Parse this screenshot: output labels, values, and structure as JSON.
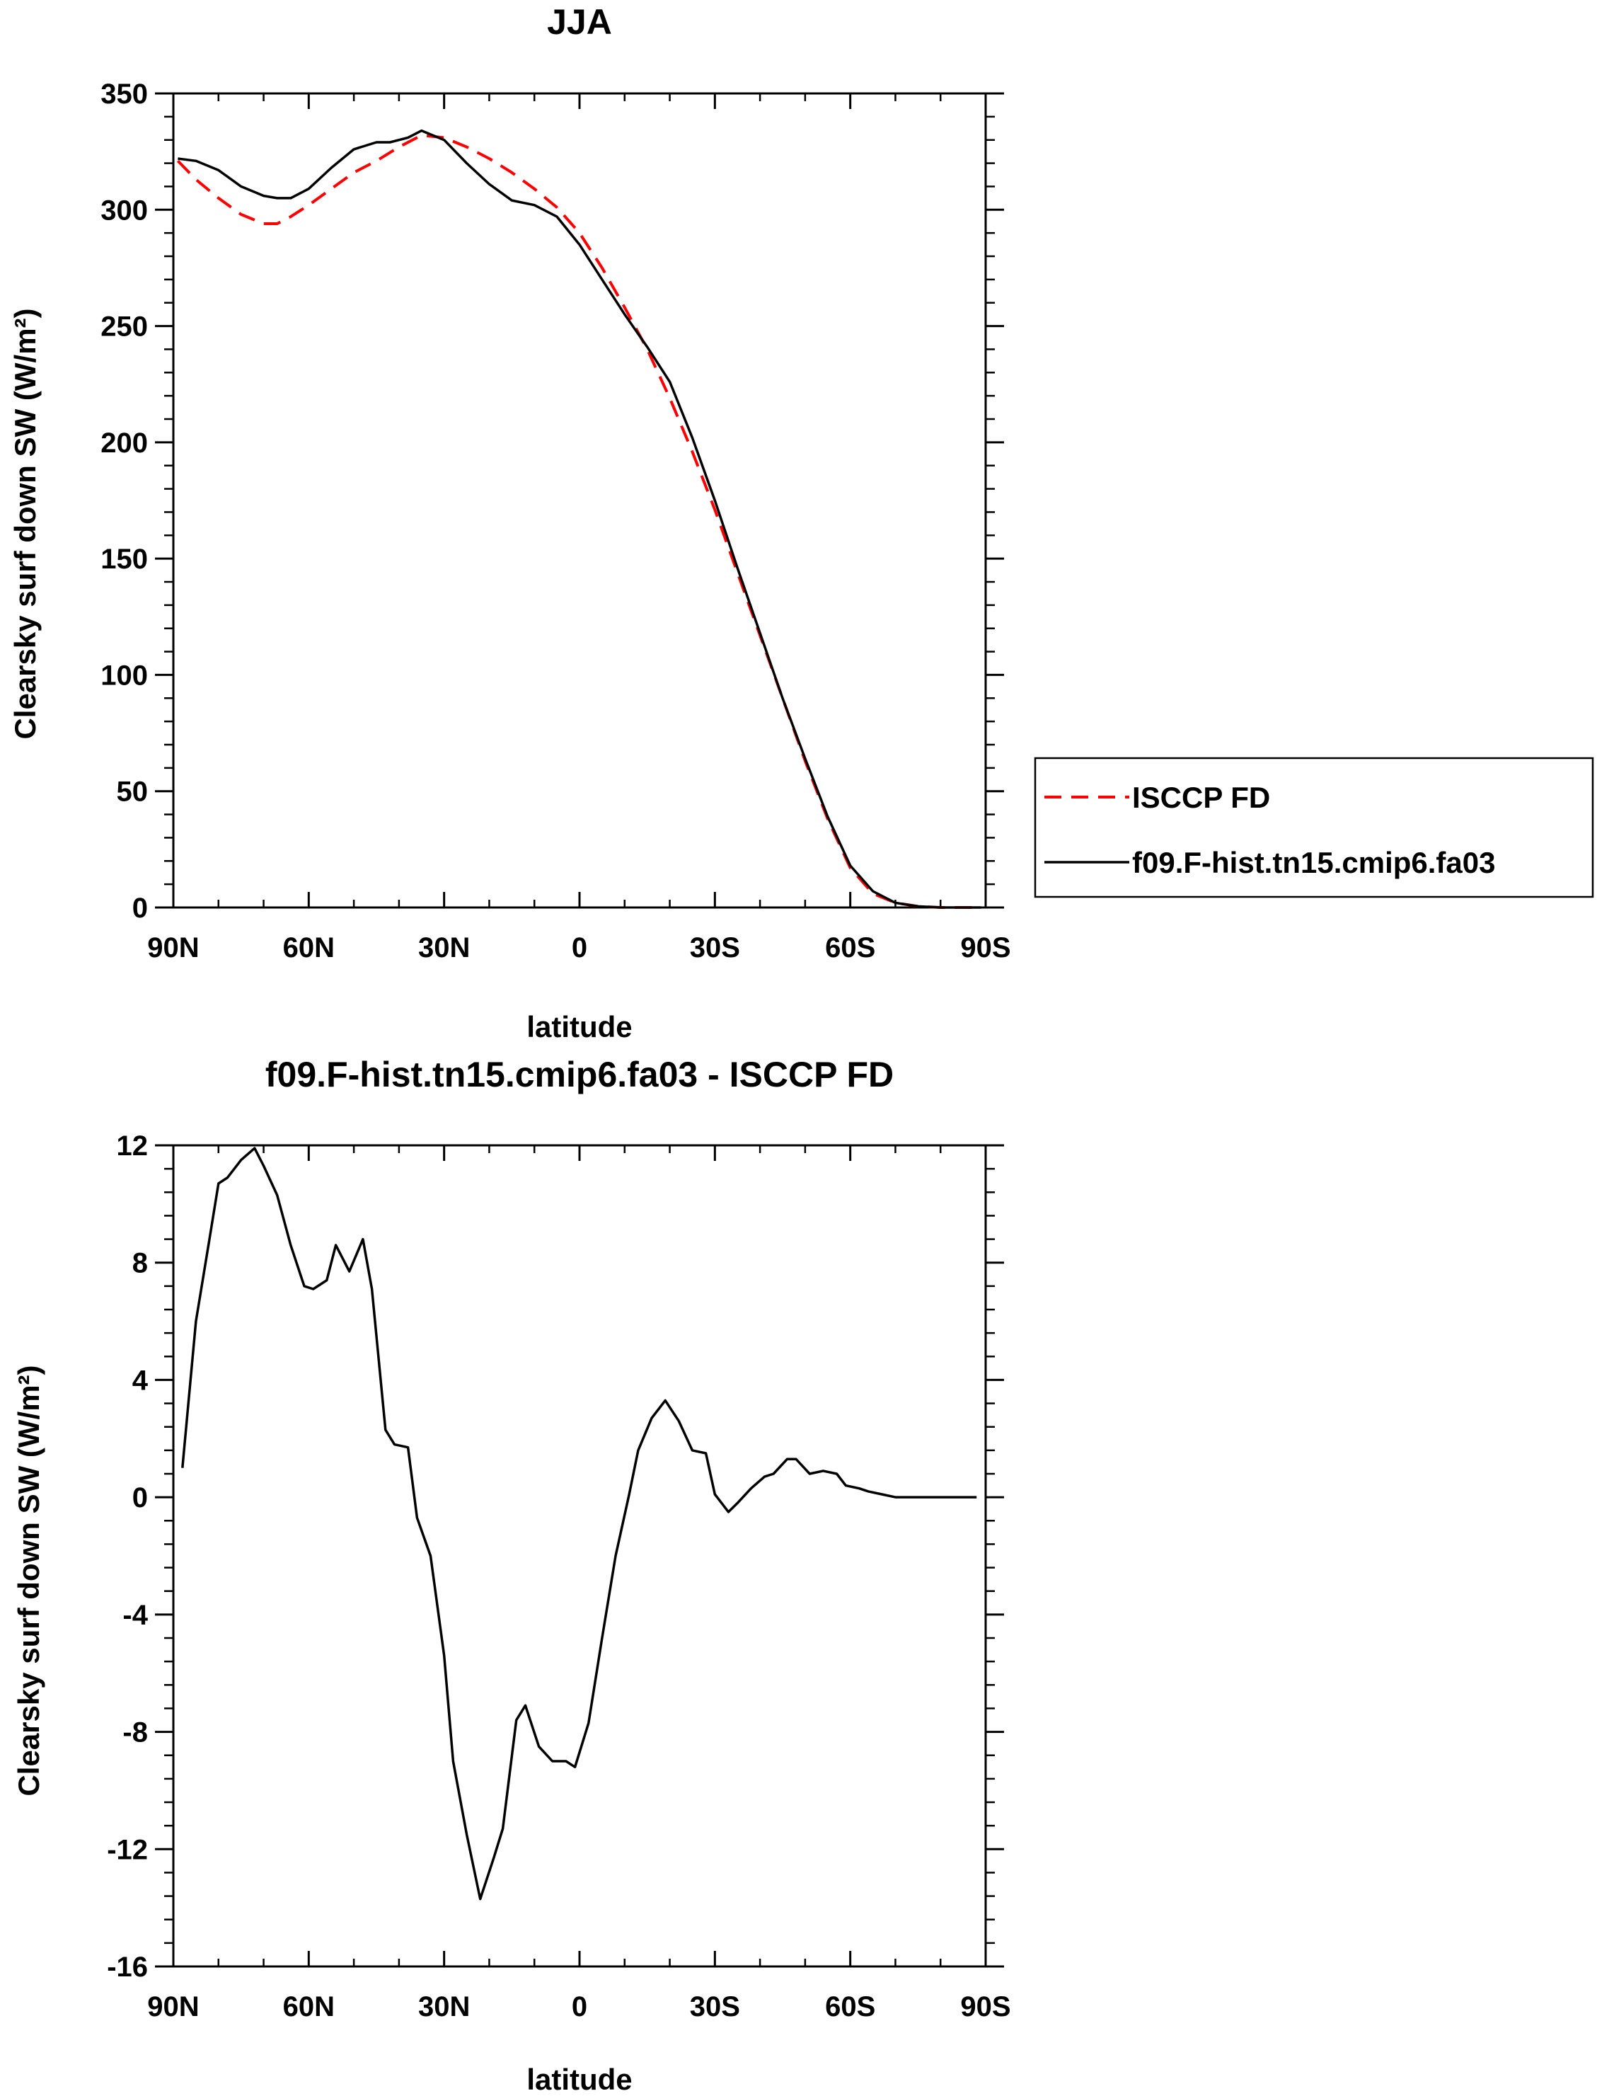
{
  "chart_data": [
    {
      "type": "line",
      "title": "JJA",
      "xlabel": "latitude",
      "ylabel": "Clearsky surf down SW (W/m²)",
      "xlim": [
        90,
        -90
      ],
      "ylim": [
        0,
        350
      ],
      "x_ticks": [
        90,
        60,
        30,
        0,
        -30,
        -60,
        -90
      ],
      "x_tick_labels": [
        "90N",
        "60N",
        "30N",
        "0",
        "30S",
        "60S",
        "90S"
      ],
      "y_ticks": [
        0,
        50,
        100,
        150,
        200,
        250,
        300,
        350
      ],
      "y_tick_labels": [
        "0",
        "50",
        "100",
        "150",
        "200",
        "250",
        "300",
        "350"
      ],
      "legend_position": "outside-right",
      "series": [
        {
          "name": "ISCCP FD",
          "color": "#ff0000",
          "dash": "dashed",
          "x": [
            89,
            85,
            80,
            75,
            70,
            67,
            64,
            60,
            55,
            50,
            45,
            40,
            35,
            30,
            25,
            20,
            15,
            10,
            5,
            0,
            -5,
            -10,
            -15,
            -20,
            -25,
            -30,
            -35,
            -40,
            -45,
            -50,
            -55,
            -60,
            -65,
            -70,
            -75,
            -80,
            -85,
            -89
          ],
          "y": [
            321,
            313,
            305,
            298,
            294,
            294,
            297,
            302,
            309,
            316,
            321,
            327,
            332,
            331,
            327,
            322,
            316,
            309,
            301,
            290,
            275,
            258,
            240,
            219,
            196,
            171,
            144,
            117,
            90,
            63,
            38,
            17,
            6,
            2,
            0.5,
            0,
            0,
            0
          ]
        },
        {
          "name": "f09.F-hist.tn15.cmip6.fa03",
          "color": "#000000",
          "dash": "solid",
          "x": [
            89,
            85,
            80,
            75,
            70,
            67,
            64,
            60,
            55,
            50,
            45,
            42,
            38,
            35,
            30,
            25,
            20,
            15,
            10,
            5,
            0,
            -5,
            -10,
            -15,
            -20,
            -25,
            -30,
            -35,
            -40,
            -45,
            -50,
            -55,
            -60,
            -65,
            -70,
            -75,
            -80,
            -85,
            -89
          ],
          "y": [
            322,
            321,
            317,
            310,
            306,
            305,
            305,
            309,
            318,
            326,
            329,
            329,
            331,
            334,
            330,
            320,
            311,
            304,
            302,
            297,
            285,
            270,
            255,
            241,
            226,
            202,
            175,
            146,
            118,
            90,
            64,
            39,
            18,
            7,
            2,
            0.5,
            0,
            0,
            0
          ]
        }
      ]
    },
    {
      "type": "line",
      "title": "f09.F-hist.tn15.cmip6.fa03 - ISCCP FD",
      "xlabel": "latitude",
      "ylabel": "Clearsky surf down SW (W/m²)",
      "xlim": [
        90,
        -90
      ],
      "ylim": [
        -16,
        12
      ],
      "x_ticks": [
        90,
        60,
        30,
        0,
        -30,
        -60,
        -90
      ],
      "x_tick_labels": [
        "90N",
        "60N",
        "30N",
        "0",
        "30S",
        "60S",
        "90S"
      ],
      "y_ticks": [
        -16,
        -12,
        -8,
        -4,
        0,
        4,
        8,
        12
      ],
      "y_tick_labels": [
        "-16",
        "-12",
        "-8",
        "-4",
        "0",
        "4",
        "8",
        "12"
      ],
      "series": [
        {
          "color": "#000000",
          "dash": "solid",
          "x": [
            88,
            85,
            82,
            80,
            78,
            75,
            72,
            70,
            67,
            64,
            61,
            59,
            56,
            54,
            51,
            48,
            46,
            43,
            41,
            38,
            36,
            33,
            30,
            28,
            25,
            22,
            19,
            17,
            14,
            12,
            9,
            6,
            3,
            1,
            -2,
            -5,
            -8,
            -11,
            -13,
            -16,
            -19,
            -22,
            -25,
            -28,
            -30,
            -33,
            -35,
            -38,
            -41,
            -43,
            -46,
            -48,
            -51,
            -54,
            -57,
            -59,
            -62,
            -64,
            -67,
            -70,
            -72,
            -75,
            -78,
            -80,
            -83,
            -88
          ],
          "y": [
            1.0,
            6.0,
            8.8,
            10.7,
            10.9,
            11.5,
            11.9,
            11.3,
            10.3,
            8.6,
            7.2,
            7.1,
            7.4,
            8.6,
            7.7,
            8.8,
            7.1,
            2.3,
            1.8,
            1.7,
            -0.7,
            -2.0,
            -5.4,
            -9.0,
            -11.5,
            -13.7,
            -12.3,
            -11.3,
            -7.6,
            -7.1,
            -8.5,
            -9.0,
            -9.0,
            -9.2,
            -7.7,
            -4.8,
            -2.0,
            0.1,
            1.6,
            2.7,
            3.3,
            2.6,
            1.6,
            1.5,
            0.1,
            -0.5,
            -0.2,
            0.3,
            0.7,
            0.8,
            1.3,
            1.3,
            0.8,
            0.9,
            0.8,
            0.4,
            0.3,
            0.2,
            0.1,
            0.0,
            0.0,
            0.0,
            0.0,
            0.0,
            0.0,
            0.0
          ]
        }
      ]
    }
  ]
}
